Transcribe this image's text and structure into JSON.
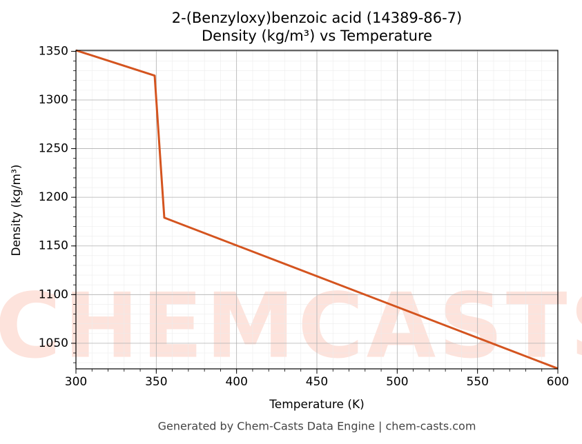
{
  "chart_data": {
    "type": "line",
    "title": "2-(Benzyloxy)benzoic acid (14389-86-7)",
    "subtitle": "Density (kg/m³) vs Temperature",
    "xlabel": "Temperature (K)",
    "ylabel": "Density (kg/m³)",
    "footer": "Generated by Chem-Casts Data Engine | chem-casts.com",
    "watermark": "CHEMCASTS",
    "x": [
      300,
      349,
      355,
      600
    ],
    "series": [
      {
        "name": "Density",
        "color": "#d4541f",
        "values": [
          1351,
          1325,
          1179,
          1024
        ]
      }
    ],
    "xlim": [
      300,
      600
    ],
    "xticks": [
      300,
      350,
      400,
      450,
      500,
      550,
      600
    ],
    "ylim": [
      1023.7,
      1351
    ],
    "yticks": [
      1050,
      1100,
      1150,
      1200,
      1250,
      1300,
      1350
    ],
    "grid": true
  }
}
